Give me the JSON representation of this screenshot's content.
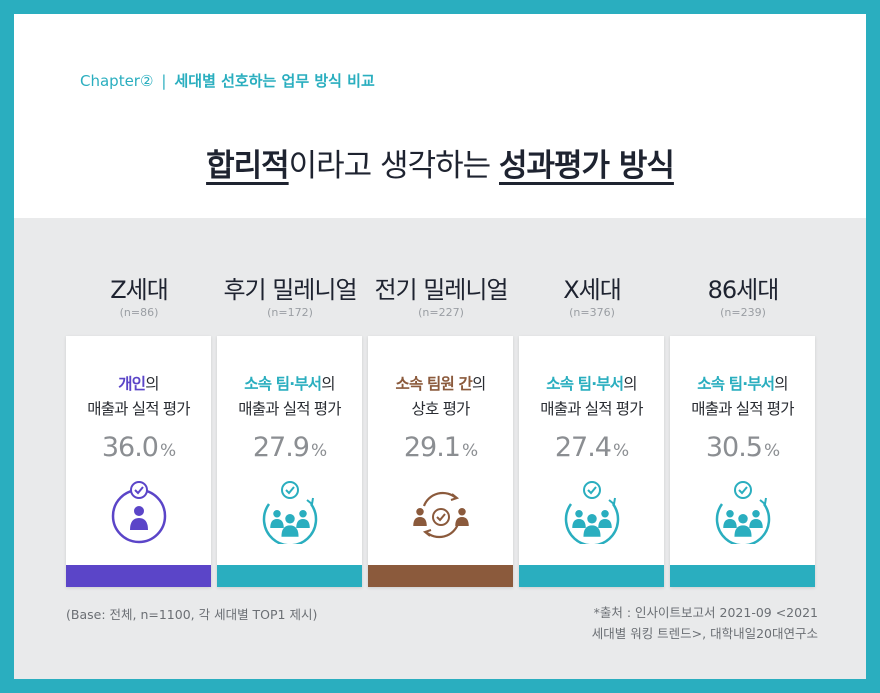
{
  "header": {
    "chapter_label": "Chapter②",
    "separator": "|",
    "subtitle": "세대별 선호하는 업무 방식 비교",
    "title_bold_1": "합리적",
    "title_plain": "이라고 생각하는 ",
    "title_bold_2": "성과평가 방식"
  },
  "colors": {
    "frame": "#2aaebf",
    "teal": "#2aaebf",
    "purple": "#5b45c8",
    "brown": "#8b5a3c",
    "text": "#1e2330"
  },
  "generations": [
    {
      "name": "Z세대",
      "n": "(n=86)",
      "highlight": "개인",
      "rest1": "의",
      "line2": "매출과 실적 평가",
      "value": "36.0",
      "unit": "%",
      "color": "#5b45c8",
      "icon": "person-icon"
    },
    {
      "name": "후기 밀레니얼",
      "n": "(n=172)",
      "highlight": "소속 팀·부서",
      "rest1": "의",
      "line2": "매출과 실적 평가",
      "value": "27.9",
      "unit": "%",
      "color": "#2aaebf",
      "icon": "team-icon"
    },
    {
      "name": "전기 밀레니얼",
      "n": "(n=227)",
      "highlight": "소속 팀원 간",
      "rest1": "의",
      "line2": "상호 평가",
      "value": "29.1",
      "unit": "%",
      "color": "#8b5a3c",
      "icon": "peer-review-icon"
    },
    {
      "name": "X세대",
      "n": "(n=376)",
      "highlight": "소속 팀·부서",
      "rest1": "의",
      "line2": "매출과 실적 평가",
      "value": "27.4",
      "unit": "%",
      "color": "#2aaebf",
      "icon": "team-icon"
    },
    {
      "name": "86세대",
      "n": "(n=239)",
      "highlight": "소속 팀·부서",
      "rest1": "의",
      "line2": "매출과 실적 평가",
      "value": "30.5",
      "unit": "%",
      "color": "#2aaebf",
      "icon": "team-icon"
    }
  ],
  "chart_data": {
    "type": "bar",
    "categories": [
      "Z세대",
      "후기 밀레니얼",
      "전기 밀레니얼",
      "X세대",
      "86세대"
    ],
    "sample_sizes": [
      86,
      172,
      227,
      376,
      239
    ],
    "top_method": [
      "개인의 매출과 실적 평가",
      "소속 팀·부서의 매출과 실적 평가",
      "소속 팀원 간의 상호 평가",
      "소속 팀·부서의 매출과 실적 평가",
      "소속 팀·부서의 매출과 실적 평가"
    ],
    "values": [
      36.0,
      27.9,
      29.1,
      27.4,
      30.5
    ],
    "unit": "%"
  },
  "footer": {
    "base_note": "(Base: 전체, n=1100, 각 세대별 TOP1 제시)",
    "source_line1": "*출처 : 인사이트보고서 2021-09 <2021",
    "source_line2": "세대별 워킹 트렌드>, 대학내일20대연구소"
  }
}
